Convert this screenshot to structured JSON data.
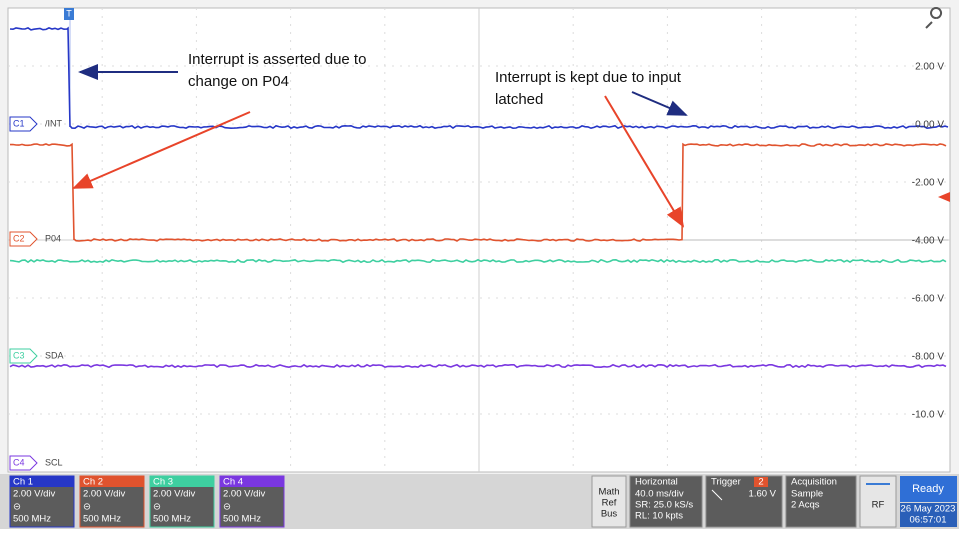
{
  "trigger_marker": "T",
  "scale_labels": [
    "2.00 V",
    "0.00 V",
    "-2.00 V",
    "-4.00 V",
    "-6.00 V",
    "-8.00 V",
    "-10.0 V"
  ],
  "channel_markers": [
    {
      "id": "C1",
      "label": "/INT"
    },
    {
      "id": "C2",
      "label": "P04"
    },
    {
      "id": "C3",
      "label": "SDA"
    },
    {
      "id": "C4",
      "label": "SCL"
    }
  ],
  "annotations": [
    {
      "lines": [
        "Interrupt is asserted due to",
        "change on P04"
      ]
    },
    {
      "lines": [
        "Interrupt is kept due to input",
        "latched"
      ]
    }
  ],
  "channel_panels": [
    {
      "name": "Ch 1",
      "scale": "2.00 V/div",
      "bandwidth": "500 MHz"
    },
    {
      "name": "Ch 2",
      "scale": "2.00 V/div",
      "bandwidth": "500 MHz"
    },
    {
      "name": "Ch 3",
      "scale": "2.00 V/div",
      "bandwidth": "500 MHz"
    },
    {
      "name": "Ch 4",
      "scale": "2.00 V/div",
      "bandwidth": "500 MHz"
    }
  ],
  "math_ref_bus": [
    "Math",
    "Ref",
    "Bus"
  ],
  "horizontal": {
    "title": "Horizontal",
    "lines": [
      "40.0 ms/div",
      "SR: 25.0 kS/s",
      "RL: 10 kpts"
    ]
  },
  "trigger": {
    "title": "Trigger",
    "source": "2",
    "level": "1.60 V"
  },
  "acquisition": {
    "title": "Acquisition",
    "lines": [
      "Sample",
      "2 Acqs"
    ]
  },
  "rf": "RF",
  "status": {
    "state": "Ready",
    "date": "26 May 2023",
    "time": "06:57:01"
  }
}
